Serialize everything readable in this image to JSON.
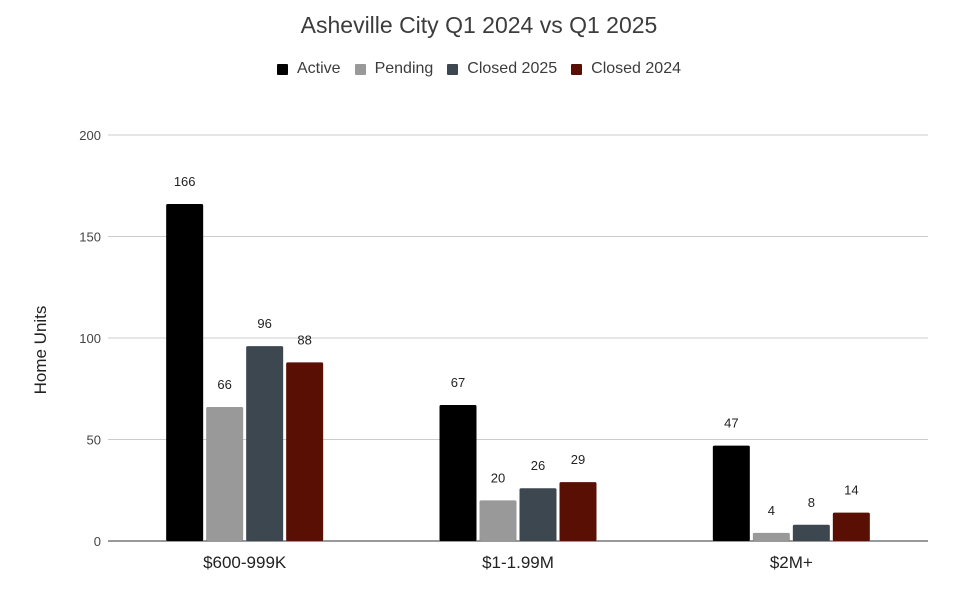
{
  "chart_data": {
    "type": "bar",
    "title": "Asheville City Q1 2024 vs Q1 2025",
    "xlabel": "",
    "ylabel": "Home Units",
    "ylim": [
      0,
      200
    ],
    "yticks": [
      0,
      50,
      100,
      150,
      200
    ],
    "grid": true,
    "legend_position": "top",
    "categories": [
      "$600-999K",
      "$1-1.99M",
      "$2M+"
    ],
    "series": [
      {
        "name": "Active",
        "color": "#000000",
        "values": [
          166,
          67,
          47
        ]
      },
      {
        "name": "Pending",
        "color": "#999999",
        "values": [
          66,
          20,
          4
        ]
      },
      {
        "name": "Closed 2025",
        "color": "#3d4750",
        "values": [
          96,
          26,
          8
        ]
      },
      {
        "name": "Closed 2024",
        "color": "#5a0f05",
        "values": [
          88,
          29,
          14
        ]
      }
    ]
  }
}
